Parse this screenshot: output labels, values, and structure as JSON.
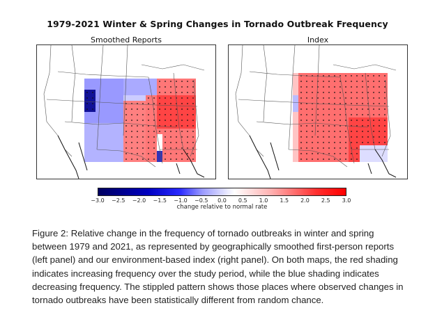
{
  "chart_data": {
    "type": "heatmap",
    "title": "1979-2021 Winter & Spring Changes in Tornado Outbreak Frequency",
    "panels": [
      {
        "name": "Smoothed Reports",
        "description": "Blue (decreasing) over the central/northern Plains and Upper Midwest, strongest in eastern Colorado/Wyoming and Florida peninsula; red (increasing) over the Mississippi Valley, Southeast, Ohio Valley, Mid-Atlantic and Northeast, strongest around Virginia/Carolinas and Mississippi/Alabama; stippling over the Southeast and lower Ohio Valley."
      },
      {
        "name": "Index",
        "description": "Red (increasing) over nearly all of the central and eastern US from the Great Plains to the Northeast, strongest in the Southeast and Northeast; small blue area in eastern Colorado and faint blue in south Florida; stippling covers most of the red area."
      }
    ],
    "colorbar": {
      "label": "change relative to normal rate",
      "range": [
        -3.0,
        3.0
      ],
      "ticks": [
        "−3.0",
        "−2.5",
        "−2.0",
        "−1.5",
        "−1.0",
        "−0.5",
        "0.0",
        "0.5",
        "1.0",
        "1.5",
        "2.0",
        "2.5",
        "3.0"
      ],
      "colormap": "blue-white-red"
    }
  },
  "caption": "Figure 2: Relative change in the frequency of tornado outbreaks in winter and spring between 1979 and 2021, as represented by geographically smoothed first-person reports (left panel) and our environment-based index (right panel). On both maps, the red shading indicates increasing frequency over the study period, while the blue shading indicates decreasing frequency. The stippled pattern shows those places where observed changes in tornado outbreaks have been statistically different from random chance."
}
